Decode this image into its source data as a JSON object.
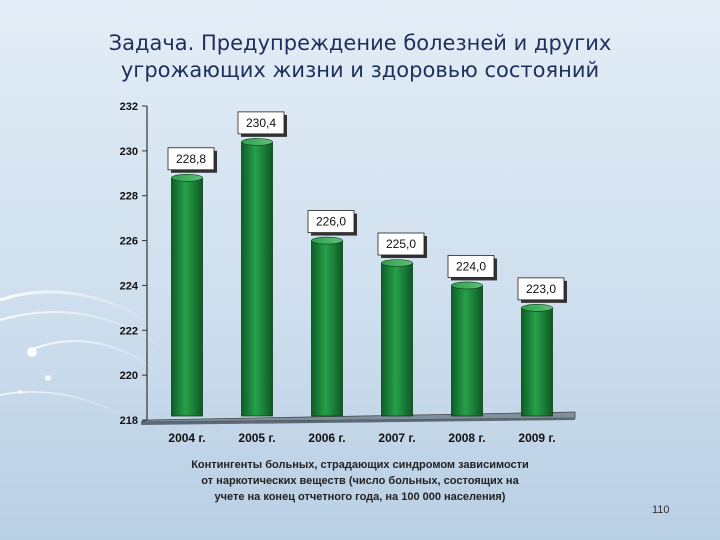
{
  "slide": {
    "title_lines": [
      "Задача. Предупреждение болезней и других",
      "угрожающих жизни и здоровью состояний"
    ],
    "page_number": "110"
  },
  "chart_data": {
    "type": "bar",
    "categories": [
      "2004 г.",
      "2005 г.",
      "2006 г.",
      "2007 г.",
      "2008 г.",
      "2009 г."
    ],
    "values": [
      228.8,
      230.4,
      226.0,
      225.0,
      224.0,
      223.0
    ],
    "data_labels": [
      "228,8",
      "230,4",
      "226,0",
      "225,0",
      "224,0",
      "223,0"
    ],
    "ylim": [
      218,
      232
    ],
    "y_ticks": [
      218,
      220,
      222,
      224,
      226,
      228,
      230,
      232
    ],
    "xlabel_lines": [
      "Контингенты больных, страдающих синдромом зависимости",
      "от наркотических веществ (число больных, состоящих на",
      "учете на конец отчетного года, на 100 000 населения)"
    ],
    "grid": false,
    "bar_color": "#1e8a3e"
  }
}
